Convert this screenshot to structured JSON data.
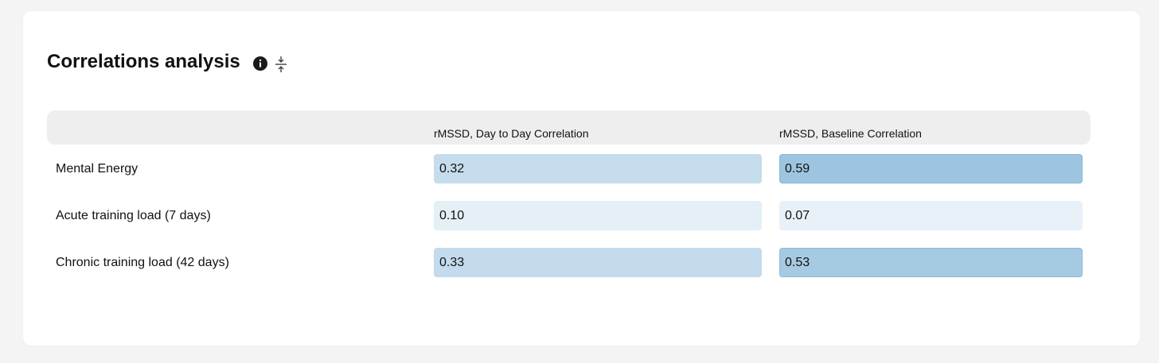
{
  "header": {
    "title": "Correlations analysis"
  },
  "table": {
    "columns": [
      "rMSSD, Day to Day Correlation",
      "rMSSD, Baseline Correlation"
    ],
    "rows": [
      {
        "label": "Mental Energy",
        "values": [
          "0.32",
          "0.59"
        ]
      },
      {
        "label": "Acute training load (7 days)",
        "values": [
          "0.10",
          "0.07"
        ]
      },
      {
        "label": "Chronic training load (42 days)",
        "values": [
          "0.33",
          "0.53"
        ]
      }
    ]
  }
}
